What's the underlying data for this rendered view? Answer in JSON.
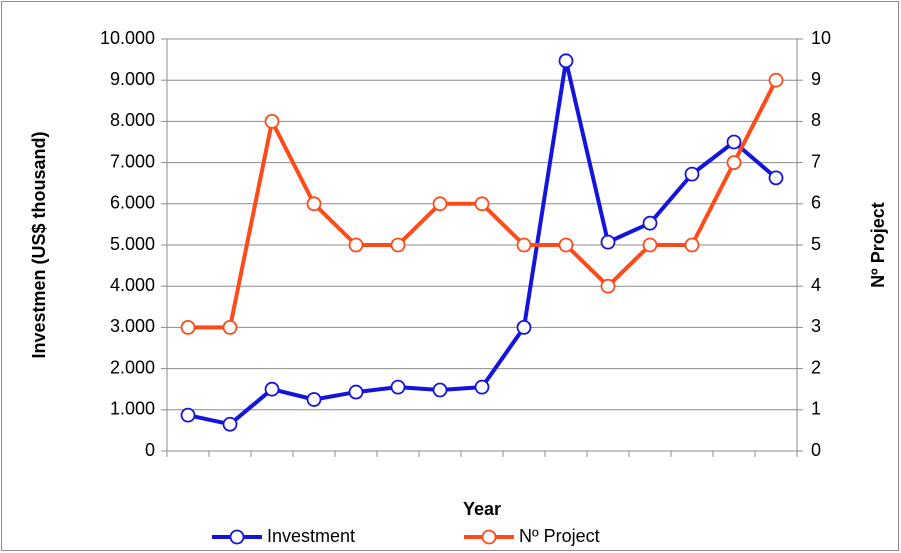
{
  "chart_data": {
    "type": "line",
    "x_label": "Year",
    "y_label": "Investmen (US$ thousand)",
    "y2_label": "Nº Project",
    "categories": [
      null,
      null,
      null,
      null,
      null,
      null,
      null,
      null,
      null,
      null,
      null,
      null,
      null,
      null,
      null
    ],
    "series": [
      {
        "name": "Investment",
        "color": "#1414dc",
        "values": [
          870,
          650,
          1500,
          1250,
          1430,
          1550,
          1480,
          1550,
          3000,
          9470,
          5070,
          5530,
          6720,
          7500,
          6630
        ]
      },
      {
        "name": "Nº Project",
        "color": "#ff4a1a",
        "axis": "y2",
        "values": [
          3,
          3,
          8,
          6,
          5,
          5,
          6,
          6,
          5,
          5,
          4,
          5,
          5,
          7,
          9
        ]
      }
    ],
    "ylim": [
      0,
      10000
    ],
    "yticks": [
      0,
      {
        "value": 1000,
        "label": "1.000"
      },
      {
        "value": 2000,
        "label": "2.000"
      },
      {
        "value": 3000,
        "label": "3.000"
      },
      {
        "value": 4000,
        "label": "4.000"
      },
      {
        "value": 5000,
        "label": "5.000"
      },
      {
        "value": 6000,
        "label": "6.000"
      },
      {
        "value": 7000,
        "label": "7.000"
      },
      {
        "value": 8000,
        "label": "8.000"
      },
      {
        "value": 9000,
        "label": "9.000"
      },
      {
        "value": 10000,
        "label": "10.000"
      }
    ],
    "y2lim": [
      0,
      10
    ],
    "y2ticks": [
      0,
      1,
      2,
      3,
      4,
      5,
      6,
      7,
      8,
      9,
      10
    ],
    "grid": true,
    "legend": "bottom"
  }
}
